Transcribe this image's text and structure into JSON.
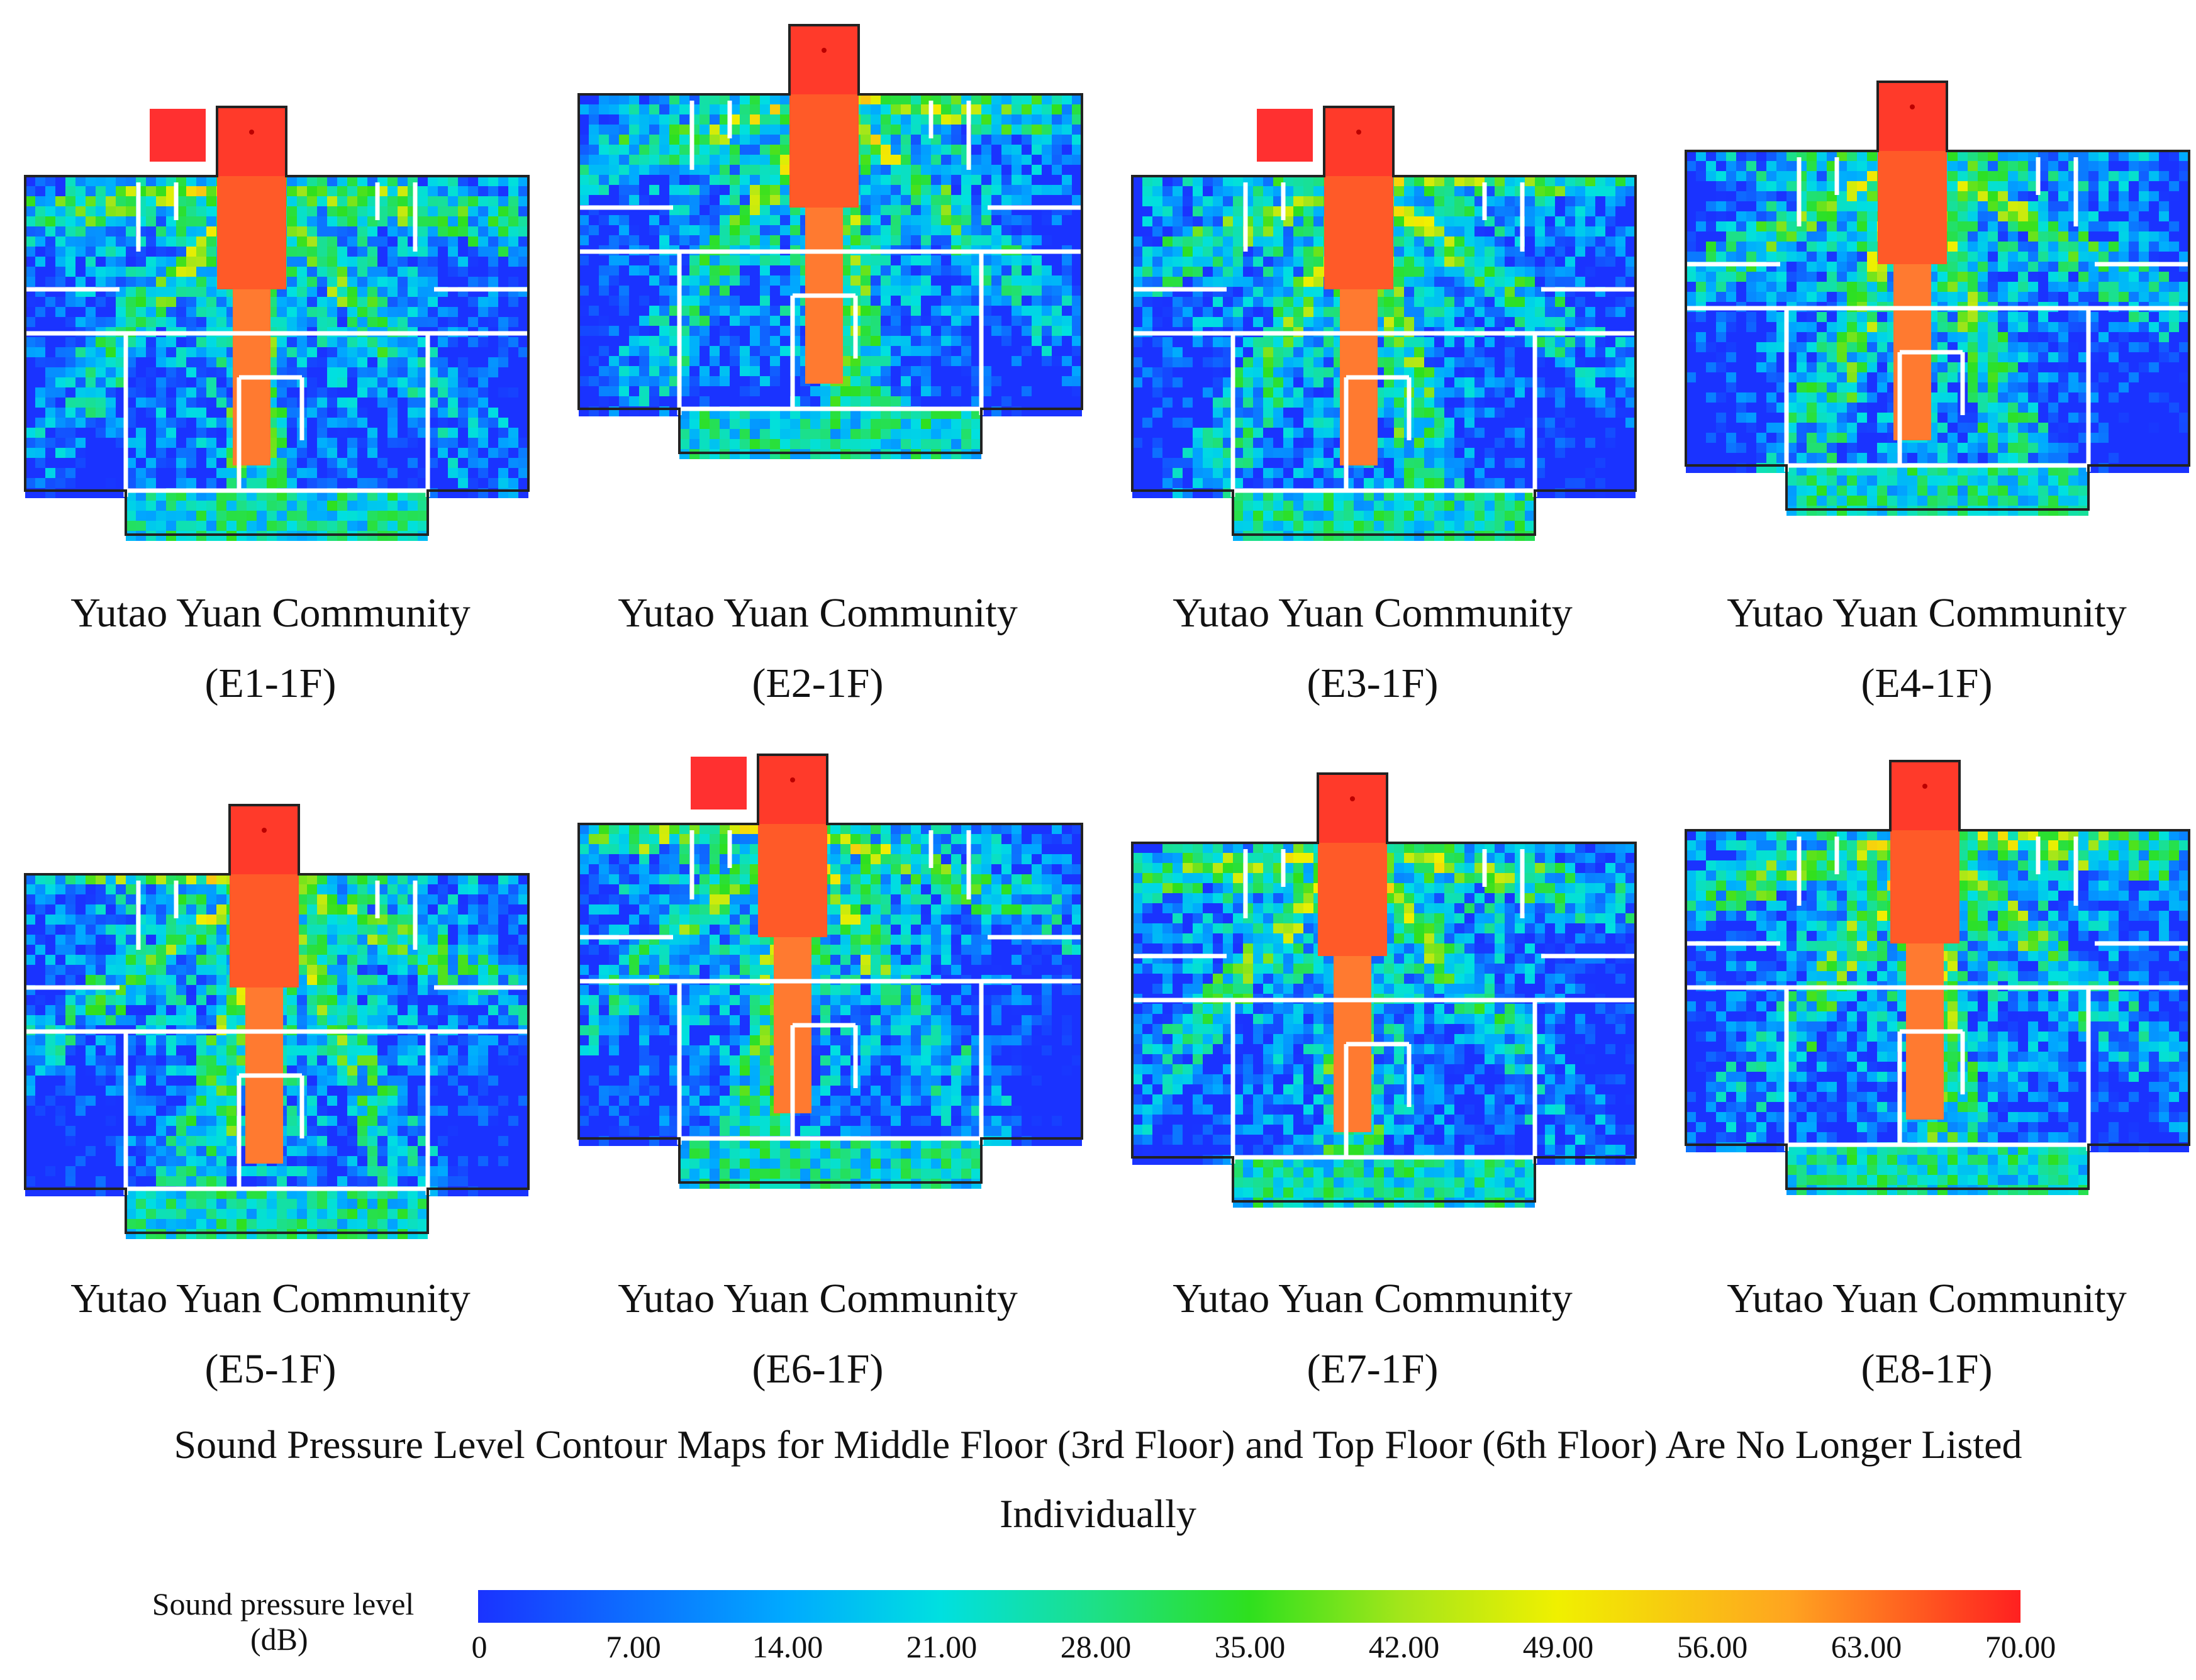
{
  "panels": [
    {
      "line1": "Yutao Yuan Community",
      "line2": "(E1-1F)"
    },
    {
      "line1": "Yutao Yuan Community",
      "line2": "(E2-1F)"
    },
    {
      "line1": "Yutao Yuan Community",
      "line2": "(E3-1F)"
    },
    {
      "line1": "Yutao Yuan Community",
      "line2": "(E4-1F)"
    },
    {
      "line1": "Yutao Yuan Community",
      "line2": "(E5-1F)"
    },
    {
      "line1": "Yutao Yuan Community",
      "line2": "(E6-1F)"
    },
    {
      "line1": "Yutao Yuan Community",
      "line2": "(E7-1F)"
    },
    {
      "line1": "Yutao Yuan Community",
      "line2": "(E8-1F)"
    }
  ],
  "note": {
    "line1": "Sound Pressure Level Contour Maps for Middle Floor (3rd Floor) and Top Floor (6th Floor) Are No Longer Listed",
    "line2": "Individually"
  },
  "legend": {
    "title_line1": "Sound pressure level",
    "title_line2": "(dB)",
    "ticks": [
      "0",
      "7.00",
      "14.00",
      "21.00",
      "28.00",
      "35.00",
      "42.00",
      "49.00",
      "56.00",
      "63.00",
      "70.00"
    ],
    "colors": {
      "low": "#1a33ff",
      "mid": "#2ee01e",
      "high": "#ff2020"
    }
  }
}
